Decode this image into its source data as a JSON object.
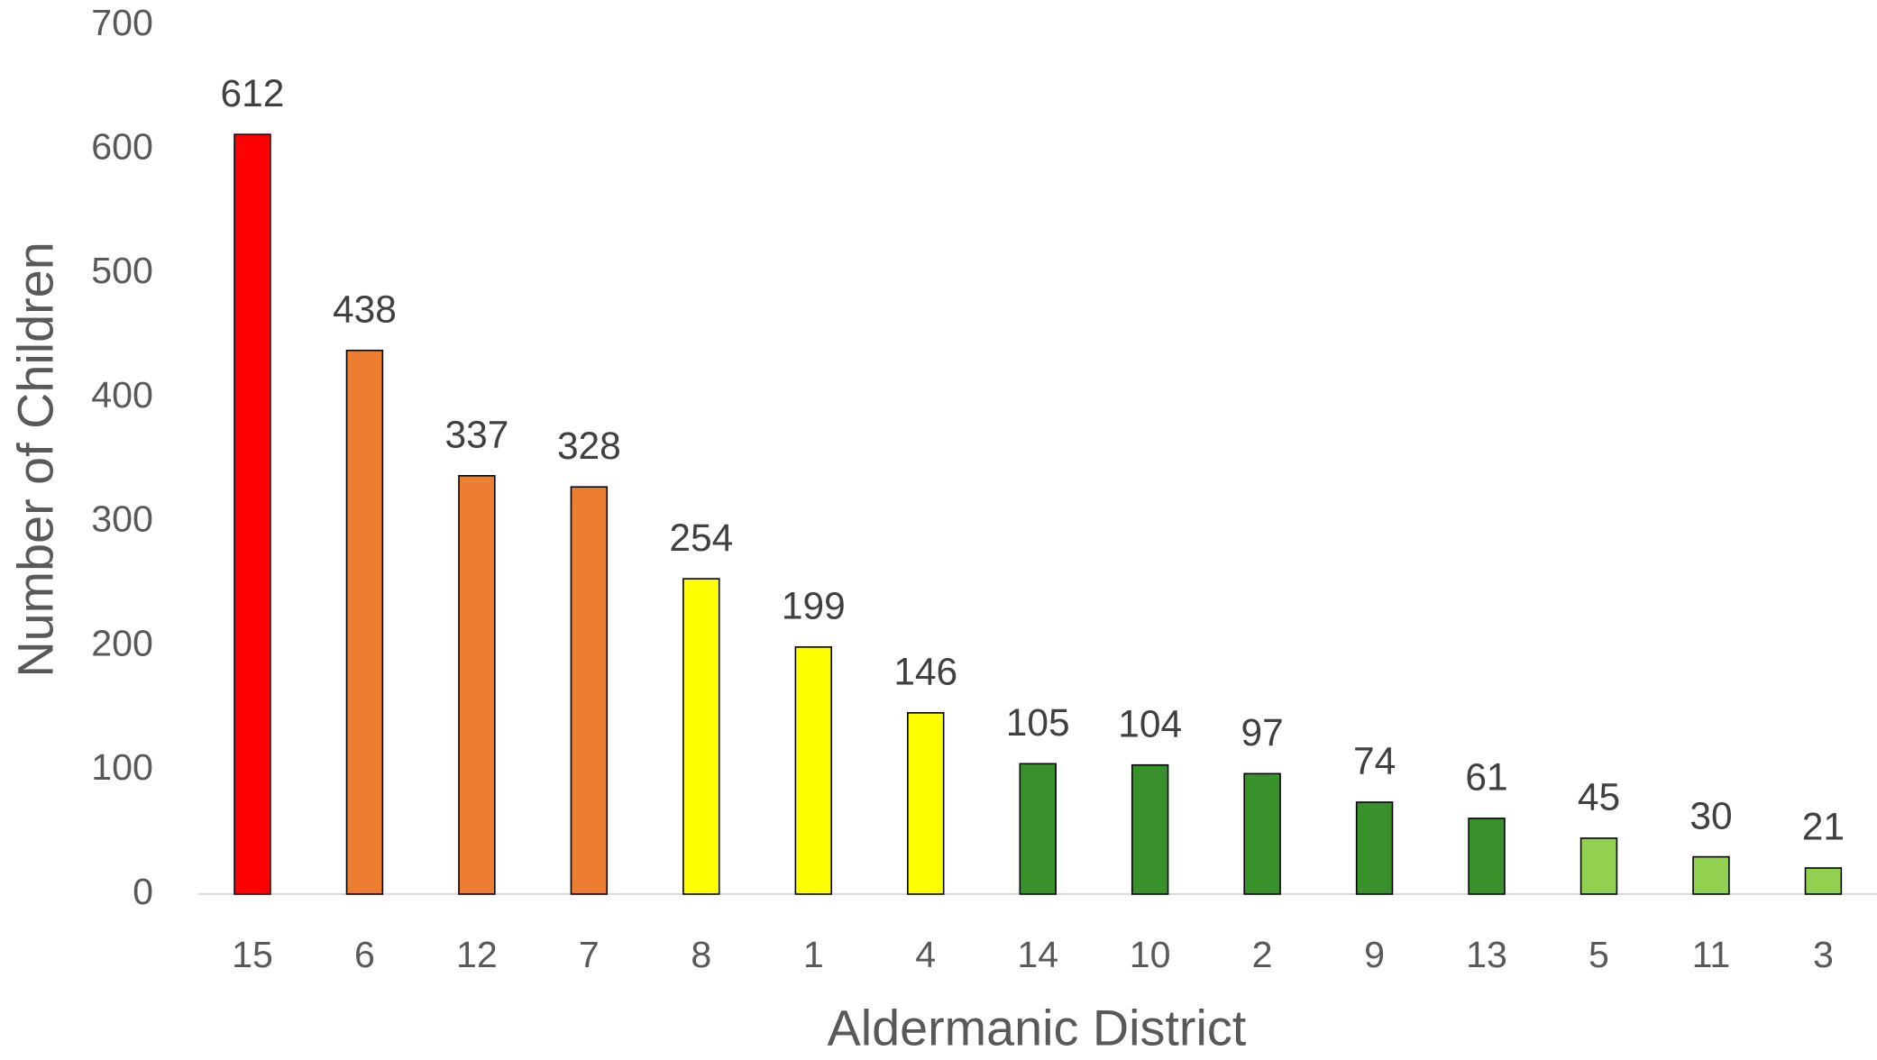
{
  "chart_data": {
    "type": "bar",
    "x_label": "Aldermanic District",
    "y_label": "Number of Children",
    "categories": [
      "15",
      "6",
      "12",
      "7",
      "8",
      "1",
      "4",
      "14",
      "10",
      "2",
      "9",
      "13",
      "5",
      "11",
      "3"
    ],
    "values": [
      612,
      438,
      337,
      328,
      254,
      199,
      146,
      105,
      104,
      97,
      74,
      61,
      45,
      30,
      21
    ],
    "colors": [
      "#ff0000",
      "#ed7d31",
      "#ed7d31",
      "#ed7d31",
      "#ffff00",
      "#ffff00",
      "#ffff00",
      "#38912b",
      "#38912b",
      "#38912b",
      "#38912b",
      "#38912b",
      "#92d050",
      "#92d050",
      "#92d050"
    ],
    "ylim": [
      0,
      700
    ],
    "yticks": [
      0,
      100,
      200,
      300,
      400,
      500,
      600,
      700
    ],
    "grid": false
  }
}
